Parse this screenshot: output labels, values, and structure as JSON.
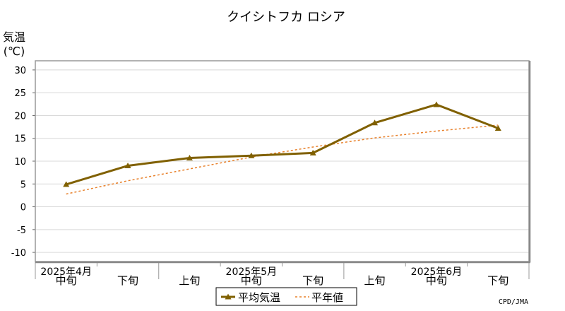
{
  "chart_data": {
    "type": "line",
    "title": "クイシトフカ ロシア",
    "ylabel_line1": "気温",
    "ylabel_line2": "(℃)",
    "ylim": [
      -12,
      32
    ],
    "yticks": [
      -10,
      -5,
      0,
      5,
      10,
      15,
      20,
      25,
      30
    ],
    "grid": true,
    "categories": [
      {
        "dekad": "中旬",
        "month": "2025年4月"
      },
      {
        "dekad": "下旬",
        "month": ""
      },
      {
        "dekad": "上旬",
        "month": ""
      },
      {
        "dekad": "中旬",
        "month": "2025年5月"
      },
      {
        "dekad": "下旬",
        "month": ""
      },
      {
        "dekad": "上旬",
        "month": ""
      },
      {
        "dekad": "中旬",
        "month": "2025年6月"
      },
      {
        "dekad": "下旬",
        "month": ""
      }
    ],
    "series": [
      {
        "name": "平均気温",
        "color": "#806000",
        "style": "solid-triangle",
        "values": [
          4.9,
          9.0,
          10.7,
          11.2,
          11.8,
          18.4,
          22.4,
          17.2
        ]
      },
      {
        "name": "平年値",
        "color": "#e8802a",
        "style": "dashed",
        "values": [
          2.8,
          5.7,
          8.3,
          10.9,
          13.1,
          15.1,
          16.6,
          17.9
        ]
      }
    ],
    "legend": {
      "placement": "bottom-center"
    }
  },
  "credit": "CPD/JMA"
}
